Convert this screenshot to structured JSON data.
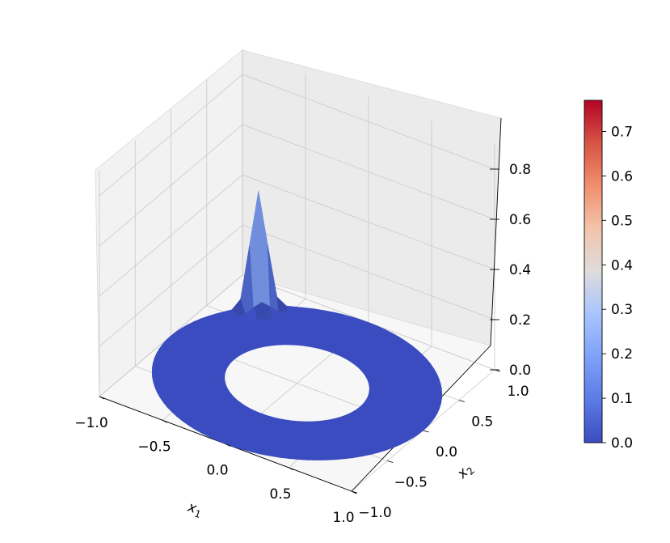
{
  "chart_data": {
    "type": "surface3d",
    "description_of_data": "annular domain 0.5 <= r <= 1; value near zero everywhere except a narrow spike on the ring at (x1, x2) ~ (-0.75, 0.75)",
    "surface": {
      "domain": "annulus",
      "r_inner": 0.5,
      "r_outer": 1.0,
      "peak": {
        "x1": -0.75,
        "x2": 0.75,
        "value": 0.77
      },
      "baseline_value": 0.0,
      "colormap": "coolwarm"
    },
    "axes": {
      "x": {
        "label_main": "x",
        "label_sub": "1",
        "range": [
          -1.0,
          1.0
        ],
        "ticks": [
          "−1.0",
          "−0.5",
          "0.0",
          "0.5",
          "1.0"
        ],
        "tick_values": [
          -1.0,
          -0.5,
          0.0,
          0.5,
          1.0
        ]
      },
      "y": {
        "label_main": "x",
        "label_sub": "2",
        "range": [
          -1.0,
          1.0
        ],
        "ticks": [
          "−1.0",
          "−0.5",
          "0.0",
          "0.5",
          "1.0"
        ],
        "tick_values": [
          -1.0,
          -0.5,
          0.0,
          0.5,
          1.0
        ]
      },
      "z": {
        "label": "",
        "range": [
          0.0,
          0.9
        ],
        "ticks": [
          "0.0",
          "0.2",
          "0.4",
          "0.6",
          "0.8"
        ],
        "tick_values": [
          0.0,
          0.2,
          0.4,
          0.6,
          0.8
        ]
      }
    },
    "colorbar": {
      "range": [
        0.0,
        0.77
      ],
      "ticks": [
        "0.0",
        "0.1",
        "0.2",
        "0.3",
        "0.4",
        "0.5",
        "0.6",
        "0.7"
      ],
      "tick_values": [
        0.0,
        0.1,
        0.2,
        0.3,
        0.4,
        0.5,
        0.6,
        0.7
      ]
    },
    "grid": true,
    "colors": {
      "low": "#3b4cc0",
      "mid": "#dddddd",
      "high": "#b40426",
      "pane_back": "#ebebeb",
      "pane_side": "#f2f2f2",
      "pane_floor": "#f7f7f7",
      "grid": "#c8c8c8"
    }
  }
}
